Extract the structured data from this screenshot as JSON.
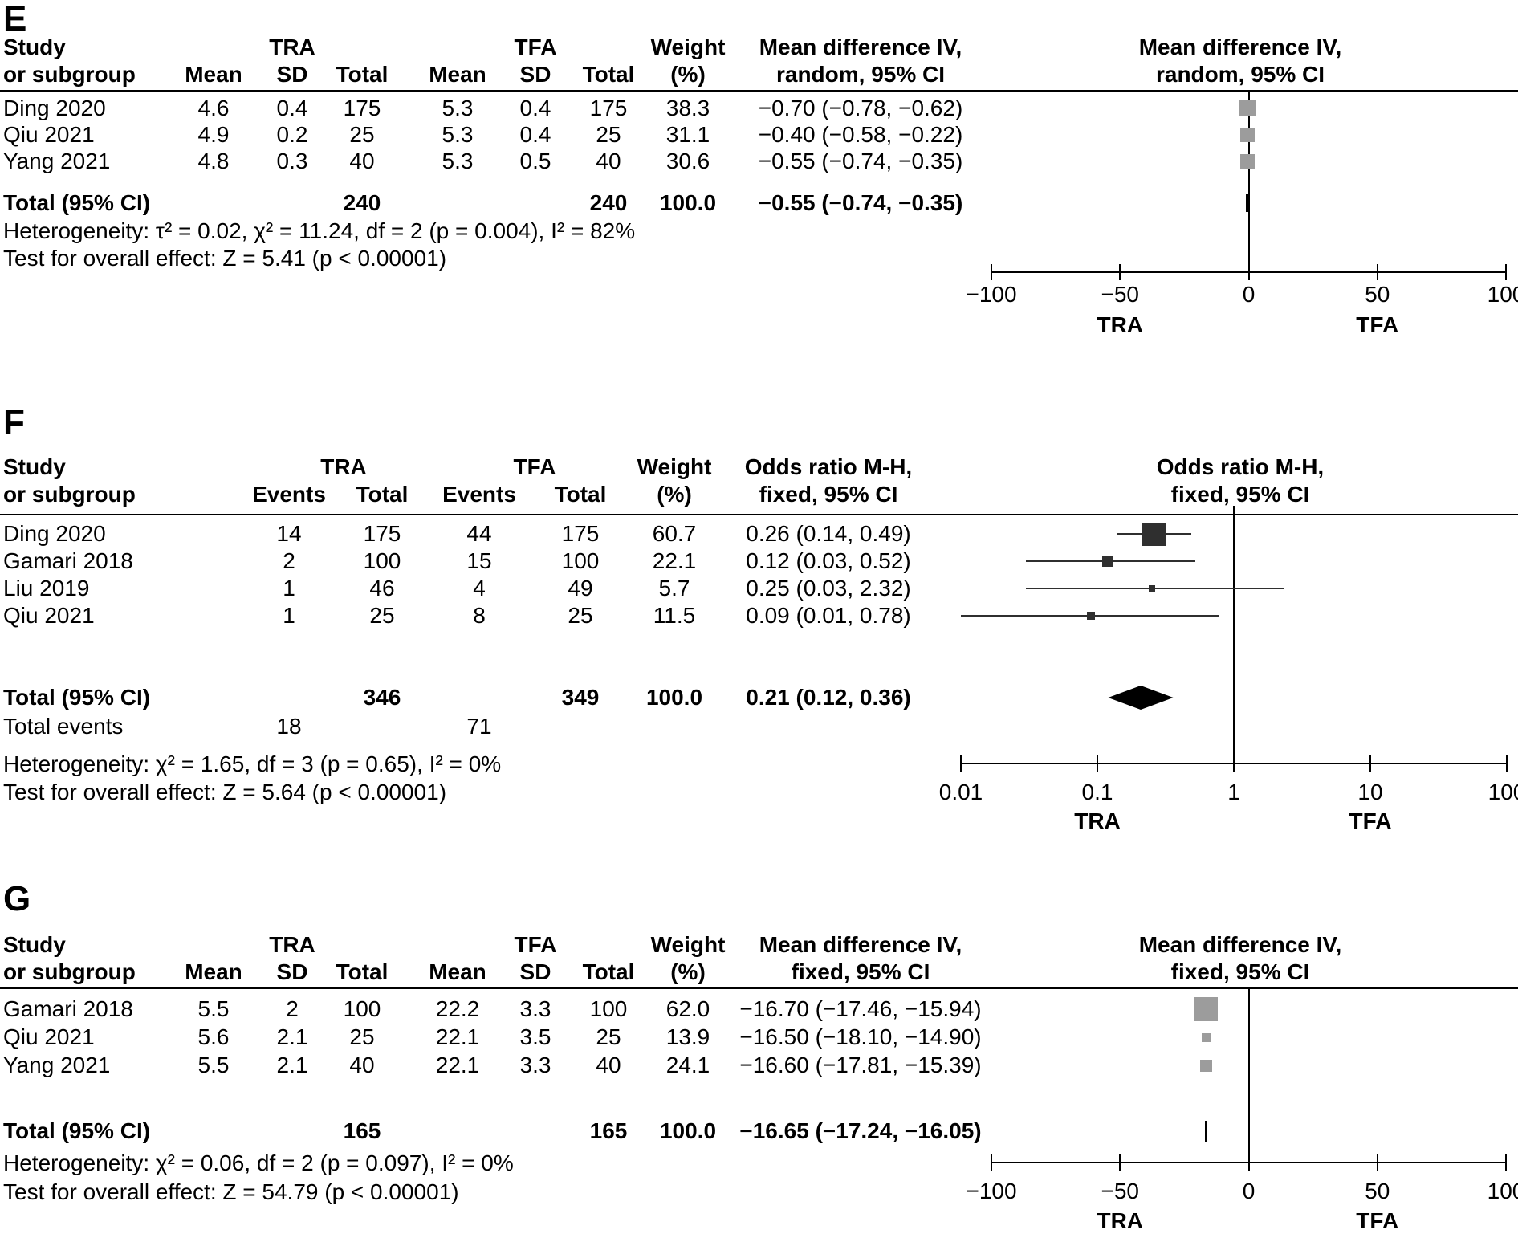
{
  "colors": {
    "marker_gray": "#9c9c9c",
    "marker_dark": "#2f2f2f",
    "diamond_black": "#000000",
    "axis_black": "#000000"
  },
  "panel_e": {
    "label": "E",
    "header": {
      "study1": "Study",
      "study2": "or subgroup",
      "tra": "TRA",
      "tfa": "TFA",
      "weight1": "Weight",
      "weight2": "(%)",
      "cols": [
        "Mean",
        "SD",
        "Total",
        "Mean",
        "SD",
        "Total"
      ],
      "effect1": "Mean difference IV,",
      "effect2": "random, 95% CI",
      "plot1": "Mean difference IV,",
      "plot2": "random, 95% CI"
    },
    "rows": [
      {
        "study": "Ding 2020",
        "mean1": "4.6",
        "sd1": "0.4",
        "total1": "175",
        "mean2": "5.3",
        "sd2": "0.4",
        "total2": "175",
        "weight": "38.3",
        "effect": "−0.70 (−0.78, −0.62)"
      },
      {
        "study": "Qiu 2021",
        "mean1": "4.9",
        "sd1": "0.2",
        "total1": "25",
        "mean2": "5.3",
        "sd2": "0.4",
        "total2": "25",
        "weight": "31.1",
        "effect": "−0.40 (−0.58, −0.22)"
      },
      {
        "study": "Yang 2021",
        "mean1": "4.8",
        "sd1": "0.3",
        "total1": "40",
        "mean2": "5.3",
        "sd2": "0.5",
        "total2": "40",
        "weight": "30.6",
        "effect": "−0.55 (−0.74, −0.35)"
      }
    ],
    "total_row": {
      "label": "Total (95% CI)",
      "total1": "240",
      "total2": "240",
      "weight": "100.0",
      "effect": "−0.55 (−0.74, −0.35)"
    },
    "heterogeneity": "Heterogeneity: τ² = 0.02, χ² = 11.24, df = 2 (p = 0.004), I² = 82%",
    "overall_effect": "Test for overall effect: Z = 5.41 (p < 0.00001)"
  },
  "panel_f": {
    "label": "F",
    "header": {
      "study1": "Study",
      "study2": "or subgroup",
      "tra": "TRA",
      "tfa": "TFA",
      "weight1": "Weight",
      "weight2": "(%)",
      "cols": [
        "Events",
        "Total",
        "Events",
        "Total"
      ],
      "effect1": "Odds ratio M-H,",
      "effect2": "fixed, 95% CI",
      "plot1": "Odds ratio M-H,",
      "plot2": "fixed, 95% CI"
    },
    "rows": [
      {
        "study": "Ding 2020",
        "events1": "14",
        "total1": "175",
        "events2": "44",
        "total2": "175",
        "weight": "60.7",
        "effect": "0.26 (0.14, 0.49)"
      },
      {
        "study": "Gamari 2018",
        "events1": "2",
        "total1": "100",
        "events2": "15",
        "total2": "100",
        "weight": "22.1",
        "effect": "0.12 (0.03, 0.52)"
      },
      {
        "study": "Liu 2019",
        "events1": "1",
        "total1": "46",
        "events2": "4",
        "total2": "49",
        "weight": "5.7",
        "effect": "0.25 (0.03, 2.32)"
      },
      {
        "study": "Qiu 2021",
        "events1": "1",
        "total1": "25",
        "events2": "8",
        "total2": "25",
        "weight": "11.5",
        "effect": "0.09 (0.01, 0.78)"
      }
    ],
    "total_row": {
      "label": "Total (95% CI)",
      "total1": "346",
      "total2": "349",
      "weight": "100.0",
      "effect": "0.21 (0.12, 0.36)"
    },
    "total_events": {
      "label": "Total events",
      "events1": "18",
      "events2": "71"
    },
    "heterogeneity": "Heterogeneity: χ² = 1.65, df = 3 (p = 0.65), I² = 0%",
    "overall_effect": "Test for overall effect: Z = 5.64 (p < 0.00001)"
  },
  "panel_g": {
    "label": "G",
    "header": {
      "study1": "Study",
      "study2": "or subgroup",
      "tra": "TRA",
      "tfa": "TFA",
      "weight1": "Weight",
      "weight2": "(%)",
      "cols": [
        "Mean",
        "SD",
        "Total",
        "Mean",
        "SD",
        "Total"
      ],
      "effect1": "Mean difference IV,",
      "effect2": "fixed, 95% CI",
      "plot1": "Mean difference IV,",
      "plot2": "fixed, 95% CI"
    },
    "rows": [
      {
        "study": "Gamari 2018",
        "mean1": "5.5",
        "sd1": "2",
        "total1": "100",
        "mean2": "22.2",
        "sd2": "3.3",
        "total2": "100",
        "weight": "62.0",
        "effect": "−16.70 (−17.46, −15.94)"
      },
      {
        "study": "Qiu 2021",
        "mean1": "5.6",
        "sd1": "2.1",
        "total1": "25",
        "mean2": "22.1",
        "sd2": "3.5",
        "total2": "25",
        "weight": "13.9",
        "effect": "−16.50 (−18.10, −14.90)"
      },
      {
        "study": "Yang 2021",
        "mean1": "5.5",
        "sd1": "2.1",
        "total1": "40",
        "mean2": "22.1",
        "sd2": "3.3",
        "total2": "40",
        "weight": "24.1",
        "effect": "−16.60 (−17.81, −15.39)"
      }
    ],
    "total_row": {
      "label": "Total (95% CI)",
      "total1": "165",
      "total2": "165",
      "weight": "100.0",
      "effect": "−16.65 (−17.24, −16.05)"
    },
    "heterogeneity": "Heterogeneity: χ² = 0.06, df = 2 (p = 0.097), I² = 0%",
    "overall_effect": "Test for overall effect: Z = 54.79 (p < 0.00001)"
  },
  "chart_data": [
    {
      "type": "forest",
      "panel": "E",
      "effect_measure": "Mean difference IV, random, 95% CI",
      "x_scale": "linear",
      "xlim": [
        -100,
        100
      ],
      "zero_line_at": 0,
      "marker_color": "#9c9c9c",
      "ticks": [
        {
          "v": -100,
          "label": "−100"
        },
        {
          "v": -50,
          "label": "−50"
        },
        {
          "v": 0,
          "label": "0"
        },
        {
          "v": 50,
          "label": "50"
        },
        {
          "v": 100,
          "label": "100"
        }
      ],
      "group_labels": [
        {
          "text": "TRA",
          "at": -50
        },
        {
          "text": "TFA",
          "at": 50
        }
      ],
      "points": [
        {
          "study": "Ding 2020",
          "est": -0.7,
          "lo": -0.78,
          "hi": -0.62,
          "weight": 38.3
        },
        {
          "study": "Qiu 2021",
          "est": -0.4,
          "lo": -0.58,
          "hi": -0.22,
          "weight": 31.1
        },
        {
          "study": "Yang 2021",
          "est": -0.55,
          "lo": -0.74,
          "hi": -0.35,
          "weight": 30.6
        }
      ],
      "total": {
        "est": -0.55,
        "lo": -0.74,
        "hi": -0.35
      }
    },
    {
      "type": "forest",
      "panel": "F",
      "effect_measure": "Odds ratio M-H, fixed, 95% CI",
      "x_scale": "log",
      "xlim": [
        0.01,
        100
      ],
      "zero_line_at": 1,
      "marker_color": "#2f2f2f",
      "ticks": [
        {
          "v": 0.01,
          "label": "0.01"
        },
        {
          "v": 0.1,
          "label": "0.1"
        },
        {
          "v": 1,
          "label": "1"
        },
        {
          "v": 10,
          "label": "10"
        },
        {
          "v": 100,
          "label": "100"
        }
      ],
      "group_labels": [
        {
          "text": "TRA",
          "at": 0.1
        },
        {
          "text": "TFA",
          "at": 10
        }
      ],
      "points": [
        {
          "study": "Ding 2020",
          "est": 0.26,
          "lo": 0.14,
          "hi": 0.49,
          "weight": 60.7
        },
        {
          "study": "Gamari 2018",
          "est": 0.12,
          "lo": 0.03,
          "hi": 0.52,
          "weight": 22.1
        },
        {
          "study": "Liu 2019",
          "est": 0.25,
          "lo": 0.03,
          "hi": 2.32,
          "weight": 5.7
        },
        {
          "study": "Qiu 2021",
          "est": 0.09,
          "lo": 0.01,
          "hi": 0.78,
          "weight": 11.5
        }
      ],
      "total": {
        "est": 0.21,
        "lo": 0.12,
        "hi": 0.36
      }
    },
    {
      "type": "forest",
      "panel": "G",
      "effect_measure": "Mean difference IV, fixed, 95% CI",
      "x_scale": "linear",
      "xlim": [
        -100,
        100
      ],
      "zero_line_at": 0,
      "marker_color": "#9c9c9c",
      "ticks": [
        {
          "v": -100,
          "label": "−100"
        },
        {
          "v": -50,
          "label": "−50"
        },
        {
          "v": 0,
          "label": "0"
        },
        {
          "v": 50,
          "label": "50"
        },
        {
          "v": 100,
          "label": "100"
        }
      ],
      "group_labels": [
        {
          "text": "TRA",
          "at": -50
        },
        {
          "text": "TFA",
          "at": 50
        }
      ],
      "points": [
        {
          "study": "Gamari 2018",
          "est": -16.7,
          "lo": -17.46,
          "hi": -15.94,
          "weight": 62.0
        },
        {
          "study": "Qiu 2021",
          "est": -16.5,
          "lo": -18.1,
          "hi": -14.9,
          "weight": 13.9
        },
        {
          "study": "Yang 2021",
          "est": -16.6,
          "lo": -17.81,
          "hi": -15.39,
          "weight": 24.1
        }
      ],
      "total": {
        "est": -16.65,
        "lo": -17.24,
        "hi": -16.05
      }
    }
  ]
}
